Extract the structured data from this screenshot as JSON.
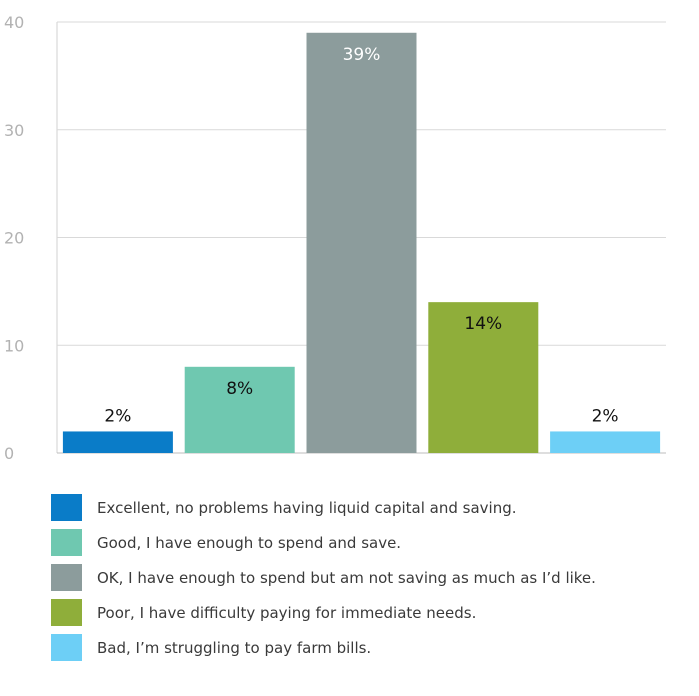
{
  "chart_data": {
    "type": "bar",
    "title": "",
    "xlabel": "",
    "ylabel": "",
    "ylim": [
      0,
      40
    ],
    "yticks": [
      0,
      10,
      20,
      30,
      40
    ],
    "grid": true,
    "legend_position": "bottom",
    "categories": [
      "Excellent, no problems having liquid capital and saving.",
      "Good, I have enough to spend and save.",
      "OK, I have enough to spend but am not saving as much as I’d like.",
      "Poor, I have difficulty paying for immediate needs.",
      "Bad, I’m struggling to pay farm bills."
    ],
    "values": [
      2,
      8,
      39,
      14,
      2
    ],
    "data_labels": [
      "2%",
      "8%",
      "39%",
      "14%",
      "2%"
    ],
    "label_inside": [
      false,
      true,
      true,
      true,
      false
    ],
    "colors": [
      "#0a7cc8",
      "#6fc8b0",
      "#8c9c9c",
      "#8fae3a",
      "#6dcff6"
    ],
    "label_colors": [
      "#111111",
      "#111111",
      "#ffffff",
      "#111111",
      "#111111"
    ]
  }
}
